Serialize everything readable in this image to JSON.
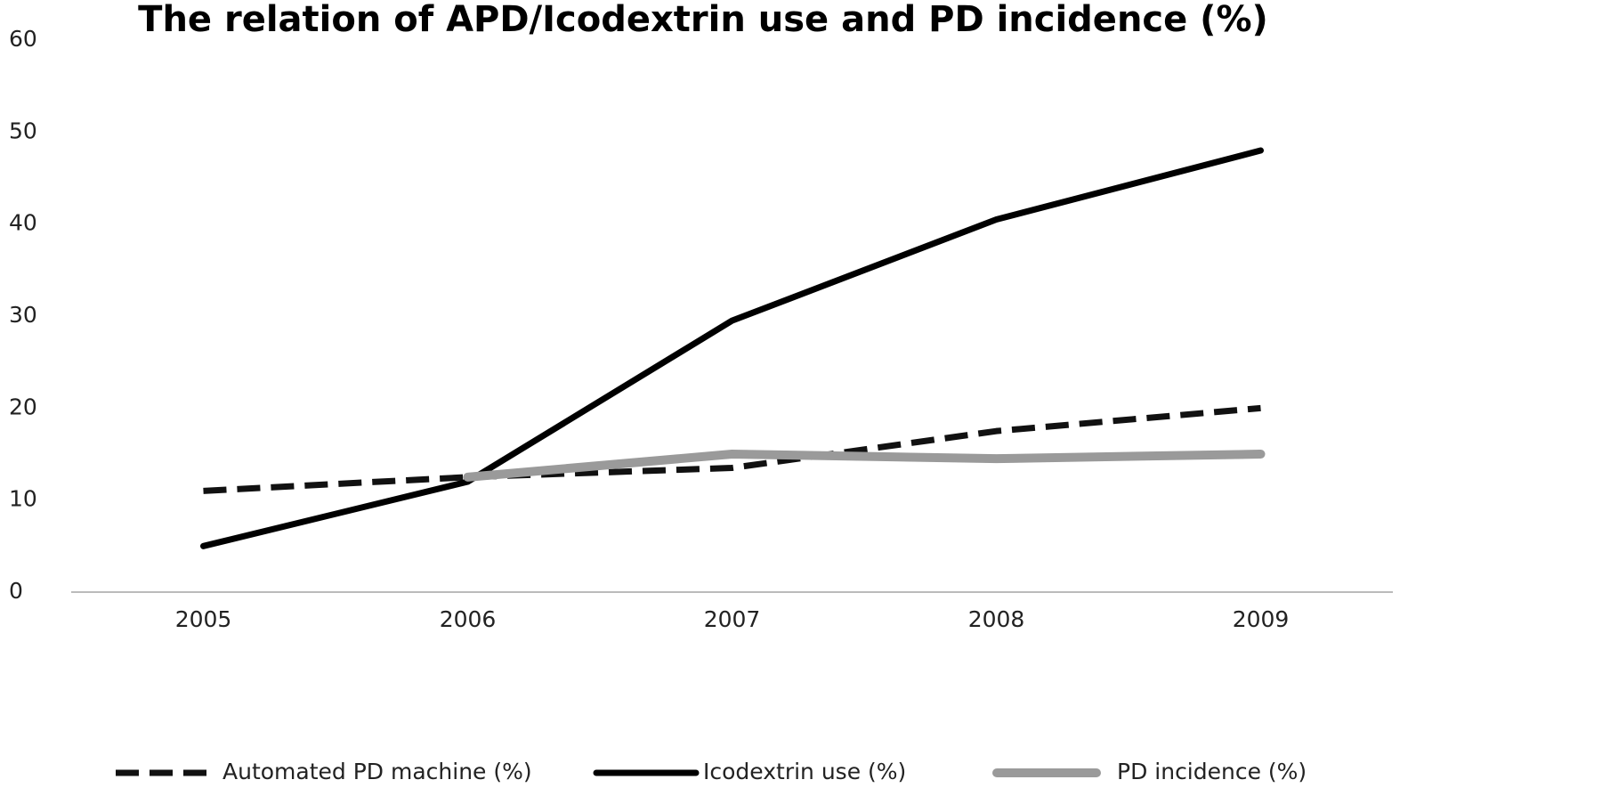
{
  "chart_data": {
    "type": "line",
    "title": "The relation of APD/Icodextrin use and PD incidence (%)",
    "categories": [
      "2005",
      "2006",
      "2007",
      "2008",
      "2009"
    ],
    "series": [
      {
        "name": "Automated PD machine (%)",
        "color": "#111111",
        "line_style": "dashed",
        "values": [
          11,
          12.5,
          13.5,
          17.5,
          20
        ]
      },
      {
        "name": "Icodextrin use (%)",
        "color": "#000000",
        "line_style": "solid",
        "values": [
          5,
          12,
          29.5,
          40.5,
          48
        ]
      },
      {
        "name": "PD incidence (%)",
        "color": "#9a9a9a",
        "line_style": "solid",
        "values": [
          null,
          12.5,
          15,
          14.5,
          15
        ]
      }
    ],
    "ylim": [
      0,
      60
    ],
    "yticks": [
      0,
      10,
      20,
      30,
      40,
      50,
      60
    ],
    "grid": false,
    "legend": "bottom"
  }
}
